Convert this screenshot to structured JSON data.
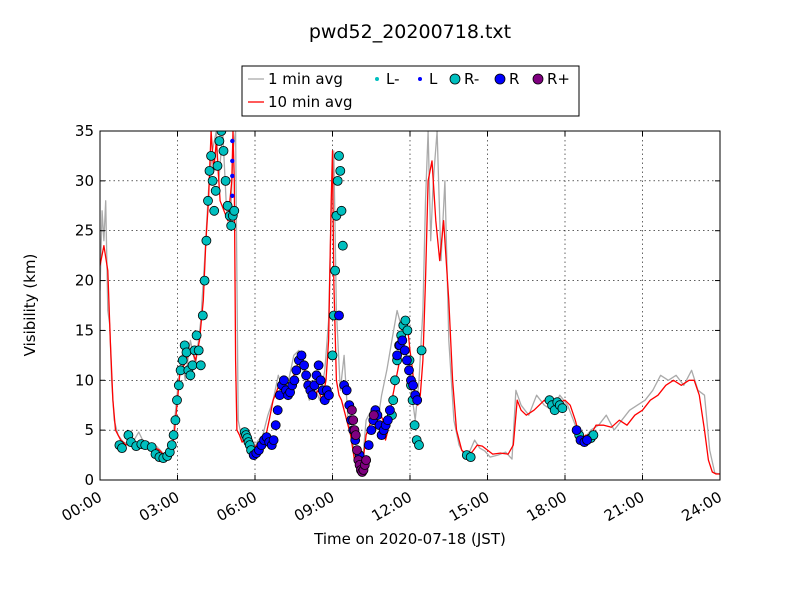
{
  "chart_data": {
    "type": "line",
    "title": "pwd52_20200718.txt",
    "xlabel": "Time on 2020-07-18 (JST)",
    "ylabel": "Visibility (km)",
    "xlim_hours": [
      0,
      24
    ],
    "ylim": [
      0,
      35
    ],
    "x_ticks": [
      {
        "hour": 0,
        "label": "00:00"
      },
      {
        "hour": 3,
        "label": "03:00"
      },
      {
        "hour": 6,
        "label": "06:00"
      },
      {
        "hour": 9,
        "label": "09:00"
      },
      {
        "hour": 12,
        "label": "12:00"
      },
      {
        "hour": 15,
        "label": "15:00"
      },
      {
        "hour": 18,
        "label": "18:00"
      },
      {
        "hour": 21,
        "label": "21:00"
      },
      {
        "hour": 24,
        "label": "24:00"
      }
    ],
    "y_ticks": [
      0,
      5,
      10,
      15,
      20,
      25,
      30,
      35
    ],
    "grid": true,
    "legend_position": "top",
    "legend": [
      {
        "label": "1 min avg",
        "kind": "line",
        "color": "#aaaaaa"
      },
      {
        "label": "L-",
        "kind": "dot",
        "color": "#00bfbf"
      },
      {
        "label": "L",
        "kind": "dot",
        "color": "#0000ff"
      },
      {
        "label": "R-",
        "kind": "circle",
        "color": "#00bfbf"
      },
      {
        "label": "R",
        "kind": "circle",
        "color": "#0000ff"
      },
      {
        "label": "R+",
        "kind": "circle",
        "color": "#800080"
      },
      {
        "label": "10 min avg",
        "kind": "line",
        "color": "#ff0000"
      }
    ],
    "series": [
      {
        "name": "10 min avg",
        "color": "#ff0000",
        "x_hours": [
          0.0,
          0.15,
          0.3,
          0.4,
          0.5,
          0.6,
          0.8,
          0.9,
          1.0,
          1.3,
          1.6,
          2.0,
          2.3,
          2.5,
          2.7,
          2.85,
          3.0,
          3.1,
          3.25,
          3.4,
          3.55,
          3.7,
          3.85,
          4.0,
          4.1,
          4.2,
          4.3,
          4.4,
          4.5,
          4.65,
          4.8,
          4.95,
          5.1,
          5.15,
          5.2,
          5.25,
          5.3,
          5.4,
          5.5,
          5.6,
          5.75,
          5.9,
          6.0,
          6.1,
          6.25,
          6.4,
          6.55,
          6.7,
          6.85,
          7.0,
          7.15,
          7.3,
          7.5,
          7.7,
          7.85,
          8.0,
          8.15,
          8.3,
          8.45,
          8.6,
          8.75,
          8.85,
          8.95,
          9.0,
          9.05,
          9.15,
          9.25,
          9.35,
          9.5,
          9.7,
          9.85,
          10.0,
          10.15,
          10.3,
          10.5,
          10.65,
          10.8,
          10.95,
          11.05,
          11.15,
          11.3,
          11.45,
          11.6,
          11.75,
          11.9,
          12.0,
          12.1,
          12.2,
          12.3,
          12.4,
          12.5,
          12.6,
          12.7,
          12.85,
          13.0,
          13.15,
          13.3,
          13.5,
          13.65,
          13.8,
          14.0,
          14.2,
          14.4,
          14.6,
          14.8,
          15.0,
          15.2,
          15.5,
          15.8,
          16.0,
          16.15,
          16.3,
          16.5,
          16.8,
          17.0,
          17.2,
          17.4,
          17.6,
          17.8,
          18.0,
          18.2,
          18.4,
          18.6,
          18.8,
          19.0,
          19.2,
          19.5,
          19.8,
          20.1,
          20.4,
          20.7,
          21.0,
          21.3,
          21.6,
          21.9,
          22.2,
          22.5,
          22.8,
          23.0,
          23.2,
          23.4,
          23.55,
          23.7,
          23.85,
          24.0
        ],
        "values": [
          21.5,
          23.5,
          21.0,
          14.0,
          8.0,
          5.0,
          4.0,
          3.8,
          3.5,
          3.9,
          3.5,
          3.4,
          3.0,
          2.4,
          2.5,
          4.0,
          8.0,
          11.0,
          11.5,
          12.5,
          13.0,
          12.0,
          14.0,
          18.0,
          24.0,
          28.0,
          35.0,
          31.0,
          34.0,
          28.0,
          27.0,
          26.0,
          30.0,
          35.0,
          30.0,
          12.0,
          5.0,
          4.5,
          3.8,
          4.0,
          3.3,
          3.0,
          3.3,
          3.6,
          3.7,
          4.2,
          6.0,
          8.0,
          9.0,
          10.0,
          9.0,
          9.5,
          10.5,
          12.0,
          11.5,
          10.5,
          9.0,
          8.5,
          9.0,
          8.0,
          10.0,
          14.0,
          28.0,
          33.0,
          20.0,
          10.0,
          8.5,
          8.0,
          6.5,
          4.5,
          2.0,
          0.9,
          1.2,
          4.5,
          6.0,
          5.5,
          7.0,
          6.0,
          4.0,
          5.0,
          8.0,
          10.0,
          12.0,
          14.0,
          15.5,
          13.0,
          11.0,
          8.0,
          7.5,
          8.5,
          12.0,
          20.0,
          30.0,
          32.0,
          26.0,
          22.0,
          26.0,
          18.0,
          10.0,
          5.0,
          3.0,
          2.5,
          2.8,
          3.5,
          3.4,
          3.0,
          2.6,
          2.7,
          2.6,
          3.5,
          8.0,
          7.0,
          6.5,
          7.0,
          7.5,
          8.0,
          7.5,
          7.0,
          7.8,
          8.0,
          7.5,
          6.0,
          4.0,
          4.5,
          4.5,
          5.5,
          5.5,
          5.3,
          6.0,
          5.5,
          6.5,
          7.0,
          8.0,
          8.5,
          9.5,
          10.0,
          9.5,
          10.0,
          10.0,
          8.5,
          5.0,
          2.0,
          0.8,
          0.6,
          0.6
        ]
      },
      {
        "name": "1 min avg",
        "color": "#aaaaaa",
        "x_hours": [
          0.0,
          0.08,
          0.15,
          0.22,
          0.3,
          0.38,
          0.45,
          0.55,
          0.7,
          0.9,
          1.2,
          1.5,
          1.8,
          2.1,
          2.4,
          2.6,
          2.8,
          3.0,
          3.15,
          3.3,
          3.5,
          3.7,
          3.9,
          4.05,
          4.2,
          4.35,
          4.5,
          4.6,
          4.75,
          4.9,
          5.05,
          5.15,
          5.25,
          5.35,
          5.5,
          5.7,
          5.9,
          6.1,
          6.3,
          6.5,
          6.7,
          6.9,
          7.1,
          7.3,
          7.5,
          7.7,
          7.9,
          8.1,
          8.3,
          8.5,
          8.7,
          8.85,
          8.95,
          9.05,
          9.15,
          9.3,
          9.45,
          9.6,
          9.8,
          10.0,
          10.15,
          10.3,
          10.5,
          10.7,
          10.9,
          11.1,
          11.3,
          11.5,
          11.7,
          11.9,
          12.05,
          12.2,
          12.35,
          12.5,
          12.6,
          12.7,
          12.8,
          12.9,
          13.05,
          13.2,
          13.35,
          13.5,
          13.7,
          13.9,
          14.1,
          14.3,
          14.5,
          14.7,
          14.9,
          15.1,
          15.4,
          15.7,
          15.95,
          16.1,
          16.3,
          16.6,
          16.9,
          17.2,
          17.5,
          17.8,
          18.1,
          18.4,
          18.7,
          19.0,
          19.3,
          19.6,
          19.9,
          20.2,
          20.5,
          20.8,
          21.1,
          21.4,
          21.7,
          22.0,
          22.3,
          22.6,
          22.9,
          23.15,
          23.4,
          23.6,
          23.8,
          24.0
        ],
        "values": [
          19.0,
          27.0,
          24.0,
          28.0,
          17.0,
          15.5,
          10.0,
          6.0,
          4.5,
          3.8,
          3.5,
          4.8,
          3.2,
          3.6,
          2.8,
          2.3,
          3.5,
          9.0,
          12.5,
          10.0,
          14.0,
          11.5,
          16.0,
          22.0,
          29.0,
          33.0,
          35.0,
          30.0,
          35.0,
          27.0,
          26.0,
          33.0,
          35.0,
          6.0,
          4.0,
          3.5,
          2.8,
          3.9,
          4.5,
          6.5,
          8.0,
          10.5,
          9.0,
          10.0,
          12.5,
          13.0,
          10.5,
          8.0,
          9.5,
          8.0,
          11.0,
          16.0,
          27.0,
          33.0,
          17.0,
          9.0,
          12.5,
          6.0,
          3.5,
          1.0,
          1.5,
          6.0,
          7.0,
          5.0,
          8.5,
          11.0,
          14.0,
          17.0,
          15.0,
          12.0,
          9.0,
          6.0,
          10.0,
          17.0,
          28.0,
          35.0,
          24.0,
          30.0,
          35.0,
          22.0,
          30.0,
          14.0,
          6.0,
          3.5,
          2.5,
          2.8,
          4.0,
          3.2,
          2.9,
          2.3,
          2.5,
          2.8,
          2.1,
          9.0,
          7.5,
          6.5,
          8.5,
          7.5,
          7.0,
          8.5,
          7.5,
          5.5,
          4.0,
          5.0,
          5.5,
          6.5,
          5.0,
          6.0,
          7.0,
          7.5,
          8.0,
          9.0,
          10.5,
          10.0,
          10.5,
          9.5,
          11.0,
          9.0,
          8.5,
          3.0,
          0.7,
          0.6
        ]
      },
      {
        "name": "R-",
        "color": "#00bfbf",
        "x_hours": [
          0.75,
          0.85,
          1.1,
          1.2,
          1.4,
          1.6,
          1.75,
          2.0,
          2.15,
          2.3,
          2.45,
          2.6,
          2.7,
          2.78,
          2.85,
          2.92,
          2.98,
          3.05,
          3.12,
          3.2,
          3.28,
          3.35,
          3.42,
          3.5,
          3.58,
          3.66,
          3.74,
          3.82,
          3.9,
          3.98,
          4.05,
          4.12,
          4.18,
          4.24,
          4.3,
          4.36,
          4.42,
          4.48,
          4.55,
          4.62,
          4.7,
          4.78,
          4.86,
          4.94,
          5.02,
          5.08,
          5.14,
          5.2,
          5.6,
          5.65,
          5.7,
          5.75,
          5.8,
          5.85,
          9.0,
          9.05,
          9.1,
          9.15,
          9.2,
          9.25,
          9.3,
          9.35,
          9.4,
          11.3,
          11.35,
          11.42,
          11.5,
          11.58,
          11.66,
          11.74,
          11.82,
          11.9,
          11.98,
          12.04,
          12.1,
          12.18,
          12.26,
          12.35,
          12.45,
          14.2,
          14.35,
          17.4,
          17.5,
          17.6,
          17.7,
          17.8,
          17.9,
          18.55,
          19.0,
          19.1
        ],
        "values": [
          3.5,
          3.2,
          4.5,
          3.8,
          3.4,
          3.6,
          3.5,
          3.3,
          2.6,
          2.3,
          2.2,
          2.4,
          2.8,
          3.5,
          4.5,
          6.0,
          8.0,
          9.5,
          11.0,
          12.0,
          13.5,
          12.8,
          11.0,
          10.5,
          11.5,
          13.0,
          14.5,
          13.0,
          11.5,
          16.5,
          20.0,
          24.0,
          28.0,
          31.0,
          32.5,
          30.0,
          27.0,
          29.0,
          31.5,
          34.0,
          35.0,
          33.0,
          30.0,
          27.5,
          26.5,
          25.5,
          26.5,
          27.0,
          4.8,
          4.5,
          4.2,
          3.8,
          3.5,
          3.0,
          12.5,
          16.5,
          21.0,
          26.5,
          30.0,
          32.5,
          31.0,
          27.0,
          23.5,
          6.5,
          8.0,
          10.0,
          12.0,
          13.5,
          14.5,
          15.5,
          16.0,
          15.0,
          12.0,
          9.5,
          8.0,
          5.5,
          4.0,
          3.5,
          13.0,
          2.5,
          2.3,
          8.0,
          7.5,
          7.0,
          7.8,
          7.5,
          7.2,
          4.5,
          4.2,
          4.5
        ]
      },
      {
        "name": "R",
        "color": "#0000ff",
        "x_hours": [
          5.95,
          6.05,
          6.15,
          6.25,
          6.35,
          6.45,
          6.55,
          6.65,
          6.72,
          6.8,
          6.88,
          6.96,
          7.04,
          7.12,
          7.2,
          7.28,
          7.36,
          7.44,
          7.52,
          7.6,
          7.7,
          7.8,
          7.9,
          7.98,
          8.06,
          8.14,
          8.22,
          8.3,
          8.38,
          8.46,
          8.54,
          8.62,
          8.7,
          8.78,
          8.86,
          9.45,
          9.55,
          9.65,
          9.72,
          9.8,
          9.88,
          10.05,
          10.3,
          10.4,
          10.5,
          10.58,
          10.66,
          10.74,
          10.82,
          10.9,
          10.98,
          11.06,
          11.14,
          11.22,
          11.5,
          11.6,
          11.7,
          11.8,
          11.88,
          11.96,
          12.04,
          12.12,
          12.2,
          12.28,
          9.25,
          18.45,
          18.6,
          18.75,
          18.85
        ],
        "values": [
          2.5,
          2.7,
          3.0,
          3.5,
          4.0,
          4.3,
          3.8,
          3.5,
          4.0,
          5.5,
          7.0,
          8.5,
          9.5,
          10.0,
          9.0,
          8.5,
          8.8,
          9.5,
          10.0,
          11.0,
          12.0,
          12.5,
          11.5,
          10.5,
          9.5,
          9.0,
          8.5,
          9.5,
          10.5,
          11.5,
          10.0,
          9.0,
          8.0,
          9.0,
          8.5,
          9.5,
          9.0,
          7.5,
          6.0,
          5.0,
          4.0,
          2.5,
          2.0,
          3.5,
          5.0,
          6.0,
          7.0,
          6.5,
          5.5,
          4.5,
          5.0,
          5.5,
          6.0,
          7.0,
          12.5,
          13.5,
          14.0,
          13.0,
          12.0,
          11.0,
          10.0,
          9.5,
          8.5,
          8.0,
          16.5,
          5.0,
          4.0,
          3.8,
          4.0
        ]
      },
      {
        "name": "R+",
        "color": "#800080",
        "x_hours": [
          9.75,
          9.8,
          9.85,
          9.9,
          9.95,
          10.0,
          10.05,
          10.1,
          10.15,
          10.2,
          10.25,
          10.3,
          10.6
        ],
        "values": [
          7.0,
          6.0,
          5.0,
          4.5,
          3.0,
          2.0,
          1.5,
          1.0,
          0.8,
          1.0,
          1.5,
          2.0,
          6.5
        ]
      },
      {
        "name": "L",
        "color": "#0000ff",
        "x_hours": [
          5.12,
          5.12,
          5.12,
          5.12
        ],
        "values": [
          34.0,
          32.0,
          30.5,
          28.5
        ]
      }
    ]
  }
}
